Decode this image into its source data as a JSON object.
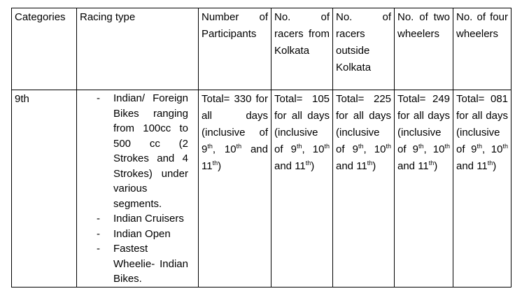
{
  "table": {
    "headers": [
      "Categories",
      "Racing type",
      "Number of Participants",
      "No. of racers from Kolkata",
      "No. of racers outside Kolkata",
      "No. of two wheelers",
      "No. of four wheelers"
    ],
    "row": {
      "category": "9th",
      "racing_types": [
        "Indian/ Foreign Bikes ranging from 100cc to 500 cc (2 Strokes and 4 Strokes) under various segments.",
        "Indian Cruisers",
        "Indian Open",
        "Fastest Wheelie- Indian Bikes."
      ],
      "participants": {
        "lead": "Total= 330 for all days (inclusive of ",
        "d1": "9",
        "s1": "th",
        "sep1": ", ",
        "d2": "10",
        "s2": "th",
        "sep2": " and ",
        "d3": "11",
        "s3": "th",
        "tail": ")"
      },
      "from_kolkata": {
        "lead": "Total= 105 for all days (inclusive of ",
        "d1": "9",
        "s1": "th",
        "sep1": ", ",
        "d2": "10",
        "s2": "th",
        "sep2": " and ",
        "d3": "11",
        "s3": "th",
        "tail": ")"
      },
      "outside_kolkata": {
        "lead": "Total= 225 for all days (inclusive of ",
        "d1": "9",
        "s1": "th",
        "sep1": ", ",
        "d2": "10",
        "s2": "th",
        "sep2": " and ",
        "d3": "11",
        "s3": "th",
        "tail": ")"
      },
      "two_wheelers": {
        "lead": "Total= 249 for all days (inclusive of ",
        "d1": "9",
        "s1": "th",
        "sep1": ", ",
        "d2": "10",
        "s2": "th",
        "sep2": " and ",
        "d3": "11",
        "s3": "th",
        "tail": ")"
      },
      "four_wheelers": {
        "lead": "Total= 081 for all days (inclusive of ",
        "d1": "9",
        "s1": "th",
        "sep1": ", ",
        "d2": "10",
        "s2": "th",
        "sep2": " and ",
        "d3": "11",
        "s3": "th",
        "tail": ")"
      }
    }
  }
}
